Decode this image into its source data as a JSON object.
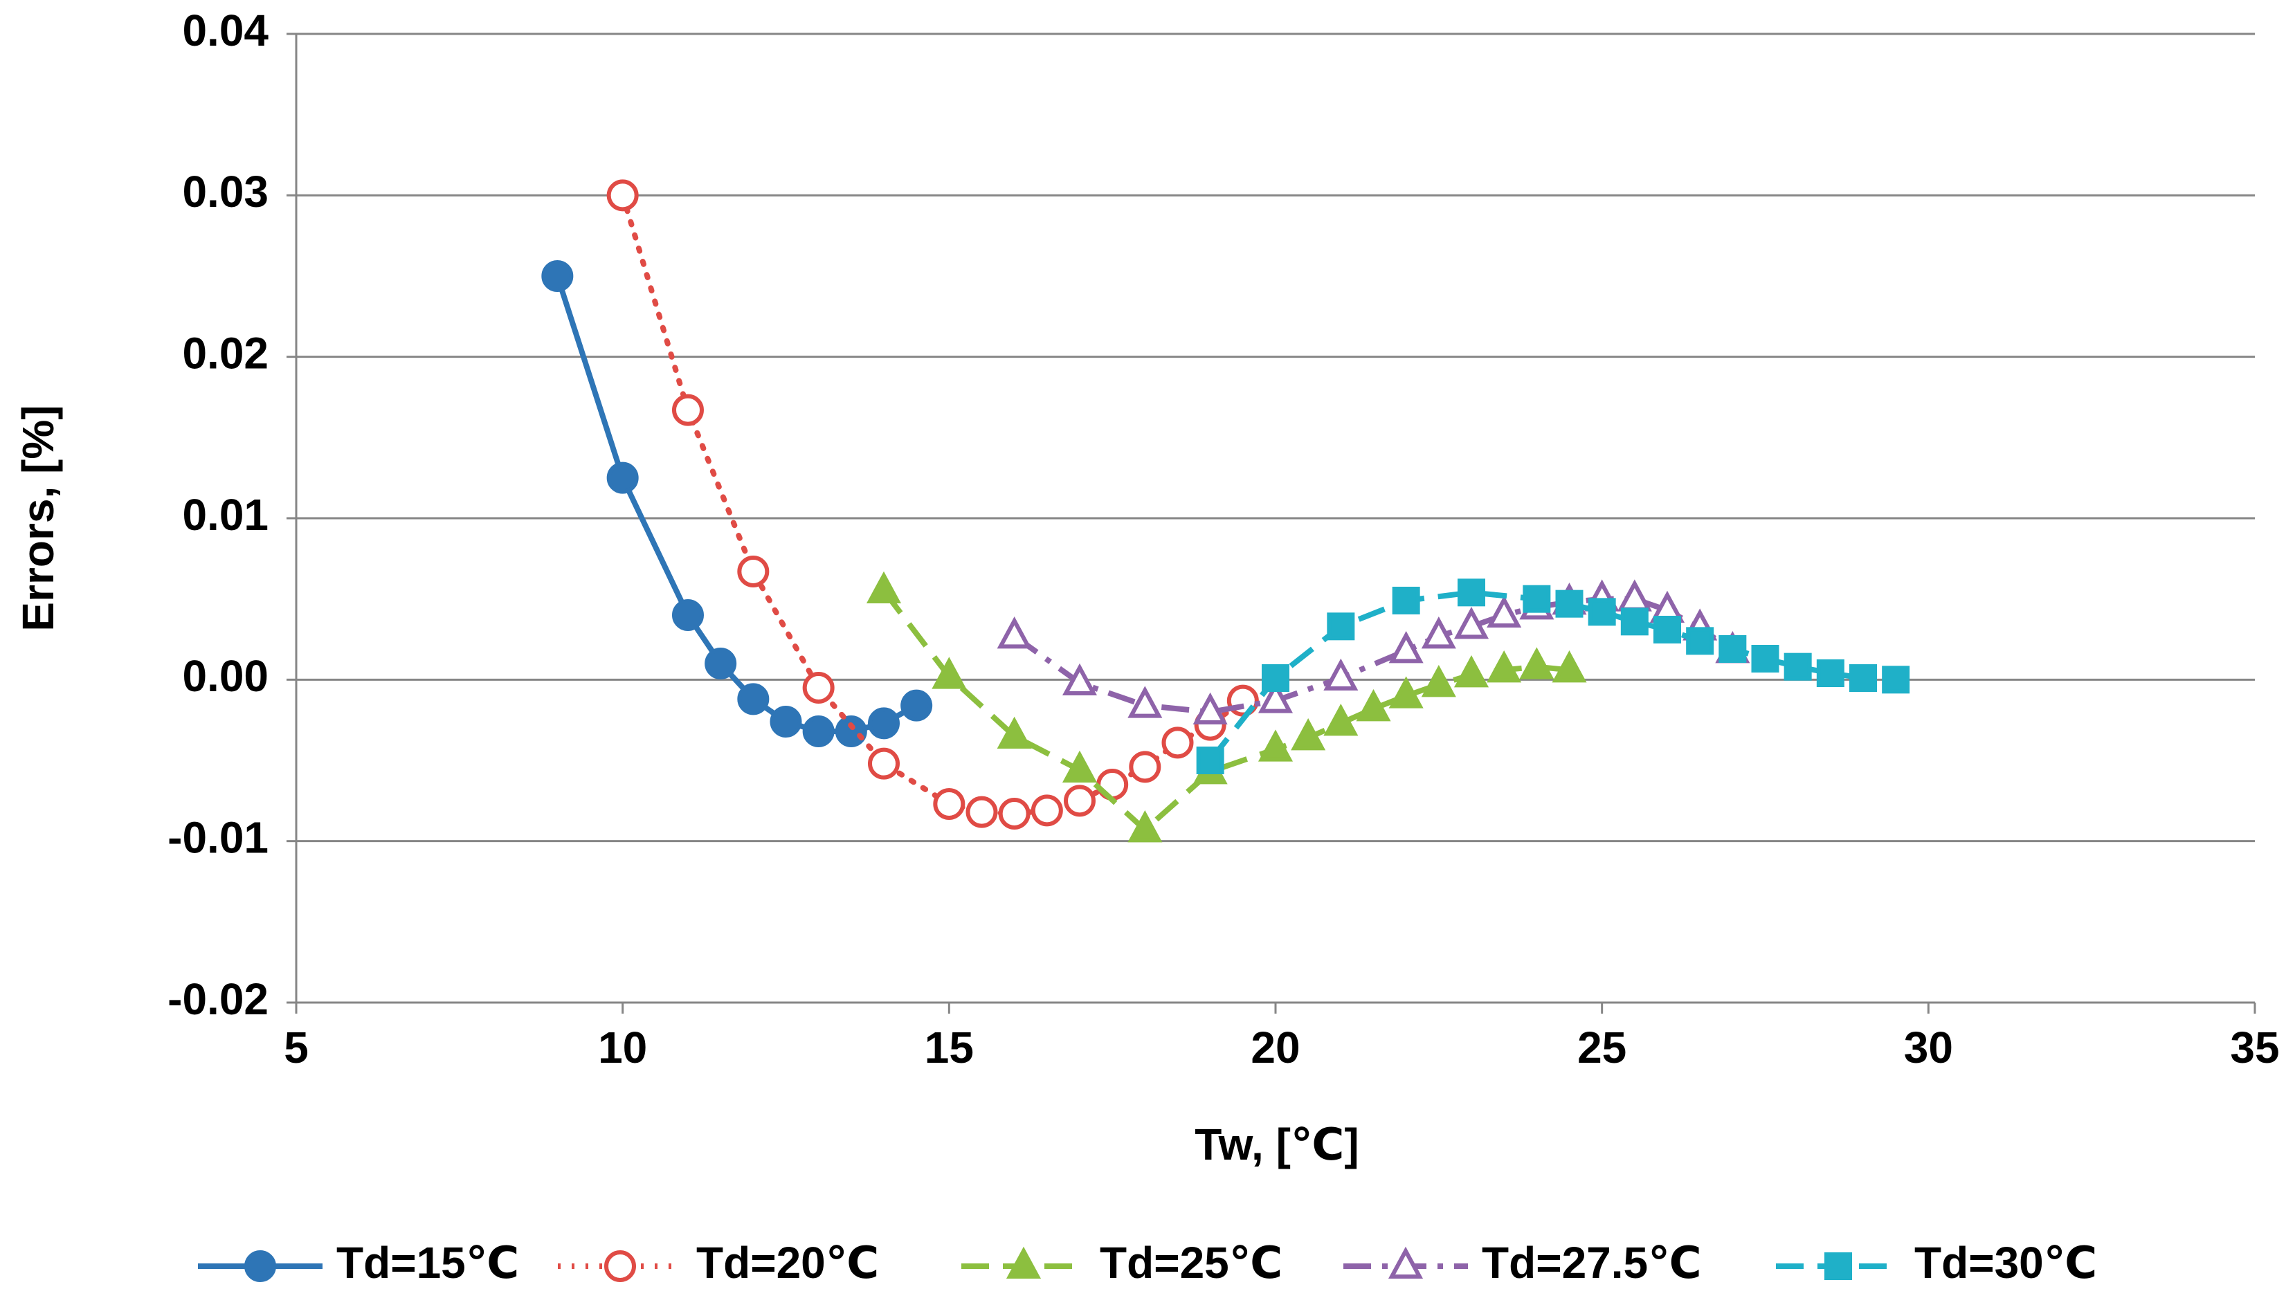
{
  "chart_data": {
    "type": "line",
    "xlabel": "Tw, [℃]",
    "ylabel": "Errors, [%]",
    "xlim": [
      5,
      35
    ],
    "xticks": [
      5,
      10,
      15,
      20,
      25,
      30,
      35
    ],
    "ylim": [
      -0.02,
      0.04
    ],
    "yticks": [
      -0.02,
      -0.01,
      {
        "value": 0,
        "label": "0.00"
      },
      0.01,
      0.02,
      0.03,
      0.04
    ],
    "grid": true,
    "legend": "bottom",
    "series": [
      {
        "name": "Td=15℃",
        "color": "#2e75b6",
        "line": "solid",
        "marker": "circle",
        "filled": true,
        "x": [
          9,
          10,
          11,
          11.5,
          12,
          12.5,
          13,
          13.5,
          14,
          14.5
        ],
        "values": [
          0.025,
          0.0125,
          0.004,
          0.001,
          -0.0012,
          -0.0026,
          -0.0032,
          -0.0032,
          -0.0027,
          -0.0016
        ]
      },
      {
        "name": "Td=20℃",
        "color": "#e04b45",
        "line": "dotted",
        "marker": "circle",
        "filled": false,
        "x": [
          10,
          11,
          12,
          13,
          14,
          15,
          15.5,
          16,
          16.5,
          17,
          17.5,
          18,
          18.5,
          19,
          19.5
        ],
        "values": [
          0.03,
          0.0167,
          0.0067,
          -0.0005,
          -0.0052,
          -0.0077,
          -0.0082,
          -0.0083,
          -0.0081,
          -0.0075,
          -0.0065,
          -0.0054,
          -0.0039,
          -0.0028,
          -0.0013
        ]
      },
      {
        "name": "Td=25℃",
        "color": "#8cbf3f",
        "line": "dashed",
        "marker": "triangle",
        "filled": true,
        "x": [
          14,
          15,
          16,
          17,
          18,
          19,
          20,
          20.5,
          21,
          21.5,
          22,
          22.5,
          23,
          23.5,
          24,
          24.5
        ],
        "values": [
          0.0055,
          0.0002,
          -0.0035,
          -0.0056,
          -0.0093,
          -0.0057,
          -0.0043,
          -0.0036,
          -0.0027,
          -0.0018,
          -0.001,
          -0.0003,
          0.0003,
          0.0006,
          0.0008,
          0.0006
        ]
      },
      {
        "name": "Td=27.5℃",
        "color": "#8e63a9",
        "line": "dashdot",
        "marker": "triangle",
        "filled": false,
        "x": [
          16,
          17,
          18,
          19,
          20,
          21,
          22,
          22.5,
          23,
          23.5,
          24,
          24.5,
          25,
          25.5,
          26,
          26.5,
          27
        ],
        "values": [
          0.0027,
          -0.0002,
          -0.0016,
          -0.002,
          -0.0013,
          0.0001,
          0.0018,
          0.0027,
          0.0033,
          0.004,
          0.0045,
          0.0048,
          0.005,
          0.005,
          0.0043,
          0.0032,
          0.0018
        ]
      },
      {
        "name": "Td=30℃",
        "color": "#1fb0c8",
        "line": "dashed",
        "marker": "square",
        "filled": true,
        "x": [
          19,
          20,
          21,
          22,
          23,
          24,
          24.5,
          25,
          25.5,
          26,
          26.5,
          27,
          27.5,
          28,
          28.5,
          29,
          29.5
        ],
        "values": [
          -0.005,
          0.0001,
          0.0033,
          0.0049,
          0.0054,
          0.005,
          0.0047,
          0.0042,
          0.0036,
          0.0031,
          0.0024,
          0.0019,
          0.0013,
          0.0008,
          0.0004,
          0.0001,
          0
        ]
      }
    ]
  }
}
